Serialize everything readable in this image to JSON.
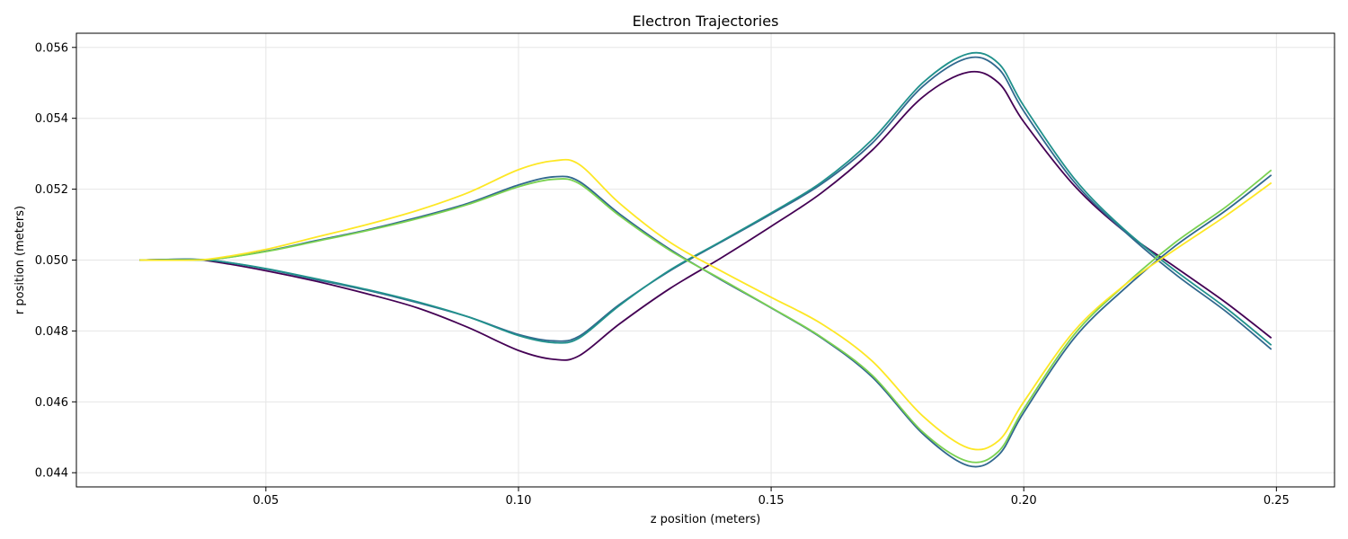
{
  "chart_data": {
    "type": "line",
    "title": "Electron Trajectories",
    "xlabel": "z position (meters)",
    "ylabel": "r position (meters)",
    "xlim": [
      0.0125,
      0.2615
    ],
    "ylim": [
      0.0436,
      0.0564
    ],
    "xticks": [
      0.05,
      0.1,
      0.15,
      0.2,
      0.25
    ],
    "xtick_labels": [
      "0.05",
      "0.10",
      "0.15",
      "0.20",
      "0.25"
    ],
    "yticks": [
      0.044,
      0.046,
      0.048,
      0.05,
      0.052,
      0.054,
      0.056
    ],
    "ytick_labels": [
      "0.044",
      "0.046",
      "0.048",
      "0.050",
      "0.052",
      "0.054",
      "0.056"
    ],
    "grid": true,
    "legend": "none",
    "series": [
      {
        "color": "#440154",
        "points": [
          [
            0.025,
            0.05
          ],
          [
            0.035,
            0.05002
          ],
          [
            0.04,
            0.04995
          ],
          [
            0.05,
            0.0497
          ],
          [
            0.06,
            0.0494
          ],
          [
            0.07,
            0.04905
          ],
          [
            0.08,
            0.04865
          ],
          [
            0.09,
            0.0481
          ],
          [
            0.1,
            0.04745
          ],
          [
            0.107,
            0.0472
          ],
          [
            0.112,
            0.0473
          ],
          [
            0.12,
            0.0482
          ],
          [
            0.13,
            0.0492
          ],
          [
            0.14,
            0.05005
          ],
          [
            0.15,
            0.05095
          ],
          [
            0.16,
            0.0519
          ],
          [
            0.17,
            0.0531
          ],
          [
            0.18,
            0.0546
          ],
          [
            0.189,
            0.0553
          ],
          [
            0.195,
            0.055
          ],
          [
            0.2,
            0.0539
          ],
          [
            0.21,
            0.0521
          ],
          [
            0.22,
            0.0508
          ],
          [
            0.23,
            0.0498
          ],
          [
            0.24,
            0.0488
          ],
          [
            0.249,
            0.0478
          ]
        ]
      },
      {
        "color": "#31688e",
        "points": [
          [
            0.025,
            0.05
          ],
          [
            0.035,
            0.05002
          ],
          [
            0.04,
            0.04998
          ],
          [
            0.05,
            0.04975
          ],
          [
            0.06,
            0.04945
          ],
          [
            0.07,
            0.04915
          ],
          [
            0.08,
            0.0488
          ],
          [
            0.09,
            0.0484
          ],
          [
            0.1,
            0.0479
          ],
          [
            0.107,
            0.04772
          ],
          [
            0.112,
            0.04785
          ],
          [
            0.12,
            0.04875
          ],
          [
            0.13,
            0.0497
          ],
          [
            0.14,
            0.0505
          ],
          [
            0.15,
            0.0513
          ],
          [
            0.16,
            0.05215
          ],
          [
            0.17,
            0.0533
          ],
          [
            0.18,
            0.0549
          ],
          [
            0.189,
            0.0557
          ],
          [
            0.195,
            0.0554
          ],
          [
            0.2,
            0.0542
          ],
          [
            0.21,
            0.0522
          ],
          [
            0.22,
            0.0508
          ],
          [
            0.23,
            0.0496
          ],
          [
            0.24,
            0.04855
          ],
          [
            0.249,
            0.04748
          ]
        ]
      },
      {
        "color": "#21918c",
        "points": [
          [
            0.025,
            0.05
          ],
          [
            0.035,
            0.05002
          ],
          [
            0.04,
            0.04998
          ],
          [
            0.05,
            0.04976
          ],
          [
            0.06,
            0.04947
          ],
          [
            0.07,
            0.04917
          ],
          [
            0.08,
            0.04882
          ],
          [
            0.09,
            0.0484
          ],
          [
            0.1,
            0.04787
          ],
          [
            0.107,
            0.04767
          ],
          [
            0.112,
            0.0478
          ],
          [
            0.12,
            0.04872
          ],
          [
            0.13,
            0.04972
          ],
          [
            0.14,
            0.05052
          ],
          [
            0.15,
            0.05133
          ],
          [
            0.16,
            0.0522
          ],
          [
            0.17,
            0.0534
          ],
          [
            0.18,
            0.055
          ],
          [
            0.189,
            0.05582
          ],
          [
            0.195,
            0.05555
          ],
          [
            0.2,
            0.05435
          ],
          [
            0.21,
            0.0523
          ],
          [
            0.22,
            0.05085
          ],
          [
            0.23,
            0.0497
          ],
          [
            0.24,
            0.04865
          ],
          [
            0.249,
            0.0476
          ]
        ]
      },
      {
        "color": "#31688e",
        "points": [
          [
            0.025,
            0.05
          ],
          [
            0.035,
            0.05
          ],
          [
            0.04,
            0.05003
          ],
          [
            0.05,
            0.05025
          ],
          [
            0.06,
            0.05055
          ],
          [
            0.07,
            0.05085
          ],
          [
            0.08,
            0.0512
          ],
          [
            0.09,
            0.0516
          ],
          [
            0.1,
            0.05212
          ],
          [
            0.107,
            0.05235
          ],
          [
            0.112,
            0.05222
          ],
          [
            0.12,
            0.0513
          ],
          [
            0.13,
            0.0503
          ],
          [
            0.14,
            0.04945
          ],
          [
            0.15,
            0.04865
          ],
          [
            0.16,
            0.0478
          ],
          [
            0.17,
            0.0467
          ],
          [
            0.18,
            0.0451
          ],
          [
            0.189,
            0.0442
          ],
          [
            0.195,
            0.0445
          ],
          [
            0.2,
            0.0457
          ],
          [
            0.21,
            0.0478
          ],
          [
            0.22,
            0.0492
          ],
          [
            0.23,
            0.0504
          ],
          [
            0.24,
            0.0514
          ],
          [
            0.249,
            0.0524
          ]
        ]
      },
      {
        "color": "#7ad151",
        "points": [
          [
            0.025,
            0.05
          ],
          [
            0.035,
            0.05
          ],
          [
            0.04,
            0.05003
          ],
          [
            0.05,
            0.05024
          ],
          [
            0.06,
            0.05053
          ],
          [
            0.07,
            0.05083
          ],
          [
            0.08,
            0.05117
          ],
          [
            0.09,
            0.05157
          ],
          [
            0.1,
            0.05207
          ],
          [
            0.107,
            0.05228
          ],
          [
            0.112,
            0.05216
          ],
          [
            0.12,
            0.05125
          ],
          [
            0.13,
            0.05027
          ],
          [
            0.14,
            0.04947
          ],
          [
            0.15,
            0.04866
          ],
          [
            0.16,
            0.04782
          ],
          [
            0.17,
            0.04675
          ],
          [
            0.18,
            0.04515
          ],
          [
            0.189,
            0.04432
          ],
          [
            0.195,
            0.0446
          ],
          [
            0.2,
            0.0458
          ],
          [
            0.21,
            0.0479
          ],
          [
            0.22,
            0.0493
          ],
          [
            0.23,
            0.0505
          ],
          [
            0.24,
            0.0515
          ],
          [
            0.249,
            0.05254
          ]
        ]
      },
      {
        "color": "#fde725",
        "points": [
          [
            0.025,
            0.05
          ],
          [
            0.035,
            0.05
          ],
          [
            0.04,
            0.05005
          ],
          [
            0.05,
            0.0503
          ],
          [
            0.06,
            0.05065
          ],
          [
            0.07,
            0.051
          ],
          [
            0.08,
            0.0514
          ],
          [
            0.09,
            0.0519
          ],
          [
            0.1,
            0.05255
          ],
          [
            0.107,
            0.0528
          ],
          [
            0.112,
            0.0527
          ],
          [
            0.12,
            0.0516
          ],
          [
            0.13,
            0.0505
          ],
          [
            0.14,
            0.0497
          ],
          [
            0.15,
            0.04895
          ],
          [
            0.16,
            0.0482
          ],
          [
            0.17,
            0.04715
          ],
          [
            0.18,
            0.0456
          ],
          [
            0.189,
            0.0447
          ],
          [
            0.195,
            0.0449
          ],
          [
            0.2,
            0.046
          ],
          [
            0.21,
            0.048
          ],
          [
            0.22,
            0.0493
          ],
          [
            0.23,
            0.0503
          ],
          [
            0.24,
            0.05125
          ],
          [
            0.249,
            0.05218
          ]
        ]
      }
    ]
  }
}
